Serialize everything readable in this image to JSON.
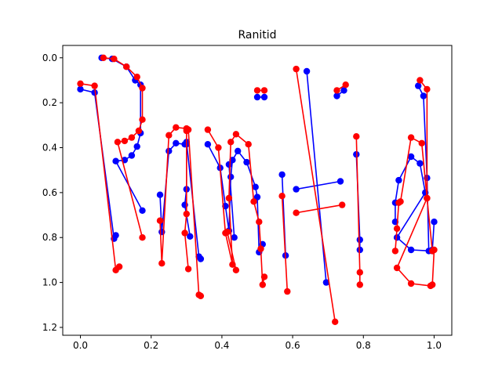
{
  "chart_data": {
    "type": "line",
    "title": "Ranitid",
    "xlabel": "",
    "ylabel": "",
    "xlim": [
      -0.05,
      1.05
    ],
    "ylim": [
      1.235,
      -0.055
    ],
    "y_inverted": true,
    "grid": false,
    "xticks": [
      0.0,
      0.2,
      0.4,
      0.6,
      0.8,
      1.0
    ],
    "xtick_labels": [
      "0.0",
      "0.2",
      "0.4",
      "0.6",
      "0.8",
      "1.0"
    ],
    "yticks": [
      0.0,
      0.2,
      0.4,
      0.6,
      0.8,
      1.0,
      1.2
    ],
    "ytick_labels": [
      "0.0",
      "0.2",
      "0.4",
      "0.6",
      "0.8",
      "1.0",
      "1.2"
    ],
    "series": [
      {
        "color": "#0000ff",
        "segments": [
          [
            [
              0.0,
              0.14
            ],
            [
              0.04,
              0.155
            ],
            [
              0.095,
              0.805
            ],
            [
              0.1,
              0.79
            ]
          ],
          [
            [
              0.06,
              0.0
            ],
            [
              0.09,
              0.005
            ],
            [
              0.13,
              0.04
            ],
            [
              0.155,
              0.1
            ],
            [
              0.17,
              0.12
            ],
            [
              0.17,
              0.335
            ],
            [
              0.16,
              0.395
            ],
            [
              0.145,
              0.435
            ],
            [
              0.125,
              0.455
            ],
            [
              0.1,
              0.46
            ],
            [
              0.175,
              0.68
            ]
          ],
          [
            [
              0.225,
              0.61
            ],
            [
              0.23,
              0.775
            ],
            [
              0.25,
              0.415
            ],
            [
              0.27,
              0.38
            ],
            [
              0.295,
              0.385
            ],
            [
              0.3,
              0.385
            ],
            [
              0.3,
              0.585
            ],
            [
              0.295,
              0.655
            ],
            [
              0.31,
              0.795
            ]
          ],
          [
            [
              0.3,
              0.375
            ],
            [
              0.335,
              0.885
            ],
            [
              0.34,
              0.895
            ]
          ],
          [
            [
              0.36,
              0.385
            ],
            [
              0.395,
              0.49
            ],
            [
              0.41,
              0.66
            ],
            [
              0.42,
              0.77
            ],
            [
              0.425,
              0.53
            ],
            [
              0.43,
              0.455
            ],
            [
              0.445,
              0.415
            ],
            [
              0.47,
              0.465
            ],
            [
              0.495,
              0.575
            ],
            [
              0.5,
              0.62
            ],
            [
              0.505,
              0.865
            ],
            [
              0.515,
              0.83
            ]
          ],
          [
            [
              0.42,
              0.475
            ],
            [
              0.435,
              0.8
            ]
          ],
          [
            [
              0.5,
              0.175
            ],
            [
              0.52,
              0.175
            ]
          ],
          [
            [
              0.57,
              0.52
            ],
            [
              0.58,
              0.88
            ]
          ],
          [
            [
              0.64,
              0.06
            ],
            [
              0.695,
              1.0
            ]
          ],
          [
            [
              0.61,
              0.585
            ],
            [
              0.735,
              0.55
            ]
          ],
          [
            [
              0.725,
              0.17
            ],
            [
              0.745,
              0.145
            ]
          ],
          [
            [
              0.78,
              0.43
            ],
            [
              0.79,
              0.81
            ],
            [
              0.79,
              0.855
            ]
          ],
          [
            [
              0.955,
              0.125
            ],
            [
              0.97,
              0.17
            ],
            [
              0.98,
              0.535
            ],
            [
              0.985,
              0.86
            ],
            [
              0.995,
              0.855
            ],
            [
              1.0,
              0.73
            ]
          ],
          [
            [
              0.89,
              0.73
            ],
            [
              0.89,
              0.645
            ],
            [
              0.9,
              0.545
            ],
            [
              0.935,
              0.44
            ],
            [
              0.96,
              0.47
            ],
            [
              0.975,
              0.6
            ],
            [
              0.895,
              0.8
            ],
            [
              0.935,
              0.855
            ],
            [
              0.995,
              0.86
            ]
          ]
        ]
      },
      {
        "color": "#ff0000",
        "segments": [
          [
            [
              0.0,
              0.115
            ],
            [
              0.04,
              0.125
            ],
            [
              0.1,
              0.945
            ],
            [
              0.11,
              0.93
            ]
          ],
          [
            [
              0.065,
              0.0
            ],
            [
              0.095,
              0.005
            ],
            [
              0.13,
              0.04
            ],
            [
              0.16,
              0.085
            ],
            [
              0.175,
              0.135
            ],
            [
              0.175,
              0.275
            ],
            [
              0.165,
              0.325
            ],
            [
              0.145,
              0.355
            ],
            [
              0.125,
              0.37
            ],
            [
              0.105,
              0.375
            ],
            [
              0.175,
              0.8
            ]
          ],
          [
            [
              0.225,
              0.725
            ],
            [
              0.23,
              0.915
            ],
            [
              0.25,
              0.345
            ],
            [
              0.27,
              0.31
            ],
            [
              0.3,
              0.315
            ],
            [
              0.3,
              0.325
            ],
            [
              0.3,
              0.695
            ],
            [
              0.295,
              0.78
            ],
            [
              0.305,
              0.94
            ]
          ],
          [
            [
              0.305,
              0.32
            ],
            [
              0.335,
              1.055
            ],
            [
              0.34,
              1.06
            ]
          ],
          [
            [
              0.36,
              0.32
            ],
            [
              0.39,
              0.4
            ],
            [
              0.41,
              0.78
            ],
            [
              0.43,
              0.92
            ],
            [
              0.42,
              0.625
            ],
            [
              0.425,
              0.375
            ],
            [
              0.44,
              0.34
            ],
            [
              0.475,
              0.385
            ],
            [
              0.49,
              0.64
            ],
            [
              0.505,
              0.73
            ],
            [
              0.51,
              0.85
            ],
            [
              0.515,
              1.01
            ],
            [
              0.52,
              0.975
            ]
          ],
          [
            [
              0.415,
              0.775
            ],
            [
              0.44,
              0.945
            ]
          ],
          [
            [
              0.5,
              0.145
            ],
            [
              0.52,
              0.145
            ]
          ],
          [
            [
              0.57,
              0.615
            ],
            [
              0.585,
              1.04
            ]
          ],
          [
            [
              0.61,
              0.05
            ],
            [
              0.72,
              1.175
            ]
          ],
          [
            [
              0.61,
              0.69
            ],
            [
              0.74,
              0.655
            ]
          ],
          [
            [
              0.725,
              0.145
            ],
            [
              0.75,
              0.12
            ]
          ],
          [
            [
              0.78,
              0.35
            ],
            [
              0.79,
              0.955
            ],
            [
              0.79,
              1.01
            ]
          ],
          [
            [
              0.96,
              0.1
            ],
            [
              0.98,
              0.14
            ],
            [
              0.98,
              0.625
            ],
            [
              0.995,
              0.86
            ],
            [
              1.0,
              0.855
            ],
            [
              0.995,
              1.01
            ]
          ],
          [
            [
              0.89,
              0.86
            ],
            [
              0.895,
              0.76
            ],
            [
              0.9,
              0.645
            ],
            [
              0.905,
              0.64
            ],
            [
              0.935,
              0.355
            ],
            [
              0.965,
              0.38
            ],
            [
              0.98,
              0.625
            ],
            [
              0.895,
              0.935
            ],
            [
              0.935,
              1.005
            ],
            [
              0.99,
              1.015
            ]
          ]
        ]
      }
    ]
  }
}
